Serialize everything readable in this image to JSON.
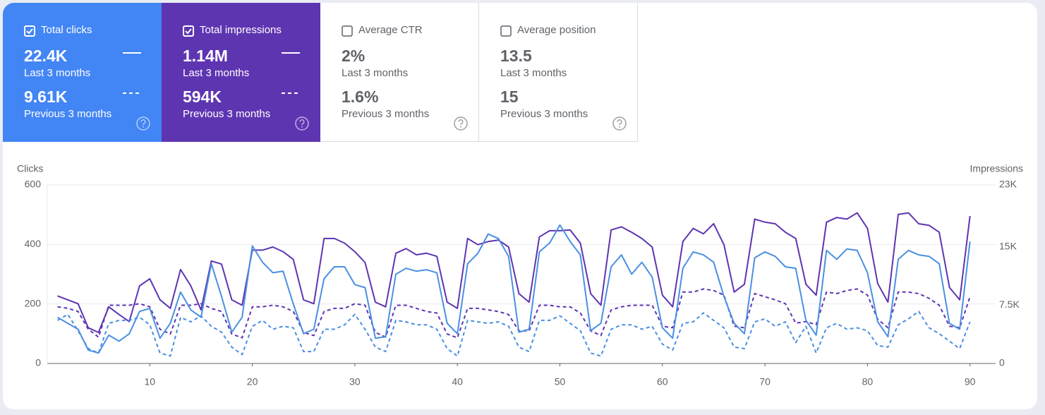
{
  "cards": [
    {
      "label": "Total clicks",
      "checked": true,
      "color": "#4285f4",
      "value": "22.4K",
      "period": "Last 3 months",
      "prev_value": "9.61K",
      "prev_period": "Previous 3 months"
    },
    {
      "label": "Total impressions",
      "checked": true,
      "color": "#5e35b1",
      "value": "1.14M",
      "period": "Last 3 months",
      "prev_value": "594K",
      "prev_period": "Previous 3 months"
    },
    {
      "label": "Average CTR",
      "checked": false,
      "color": "#ffffff",
      "value": "2%",
      "period": "Last 3 months",
      "prev_value": "1.6%",
      "prev_period": "Previous 3 months"
    },
    {
      "label": "Average position",
      "checked": false,
      "color": "#ffffff",
      "value": "13.5",
      "period": "Last 3 months",
      "prev_value": "15",
      "prev_period": "Previous 3 months"
    }
  ],
  "chart_data": {
    "type": "line",
    "y_label": "Clicks",
    "y2_label": "Impressions",
    "grid": true,
    "x": [
      1,
      2,
      3,
      4,
      5,
      6,
      7,
      8,
      9,
      10,
      11,
      12,
      13,
      14,
      15,
      16,
      17,
      18,
      19,
      20,
      21,
      22,
      23,
      24,
      25,
      26,
      27,
      28,
      29,
      30,
      31,
      32,
      33,
      34,
      35,
      36,
      37,
      38,
      39,
      40,
      41,
      42,
      43,
      44,
      45,
      46,
      47,
      48,
      49,
      50,
      51,
      52,
      53,
      54,
      55,
      56,
      57,
      58,
      59,
      60,
      61,
      62,
      63,
      64,
      65,
      66,
      67,
      68,
      69,
      70,
      71,
      72,
      73,
      74,
      75,
      76,
      77,
      78,
      79,
      80,
      81,
      82,
      83,
      84,
      85,
      86,
      87,
      88,
      89,
      90
    ],
    "xlim": [
      0,
      92.5
    ],
    "xticks": [
      10,
      20,
      30,
      40,
      50,
      60,
      70,
      80,
      90
    ],
    "ylim": [
      0,
      600
    ],
    "yticks": [
      0,
      200,
      400,
      600
    ],
    "y2lim": [
      0,
      23000
    ],
    "y2ticks": [
      0,
      {
        "value": 7500,
        "label": "7.5K"
      },
      {
        "value": 15000,
        "label": "15K"
      },
      {
        "value": 23000,
        "label": "23K"
      }
    ],
    "series": [
      {
        "color": "#5e35b1",
        "axis": "y2",
        "dashed": false,
        "values": [
          8700,
          8200,
          7700,
          4600,
          4000,
          7300,
          6300,
          5400,
          10000,
          10900,
          8200,
          7100,
          12100,
          10000,
          6900,
          13200,
          12800,
          8200,
          7500,
          14600,
          14600,
          15000,
          14400,
          13400,
          8200,
          7700,
          16100,
          16100,
          15500,
          14400,
          13000,
          7900,
          7300,
          14200,
          14800,
          14000,
          14200,
          13800,
          7900,
          7100,
          16100,
          15300,
          15700,
          15900,
          15000,
          9000,
          7900,
          16300,
          17100,
          17100,
          17200,
          15500,
          9000,
          7500,
          17200,
          17600,
          16900,
          16100,
          15000,
          8800,
          7300,
          15700,
          17400,
          16700,
          18000,
          15300,
          9200,
          10200,
          18600,
          18200,
          18000,
          16900,
          16100,
          10200,
          8800,
          18200,
          18800,
          18600,
          19400,
          17400,
          10300,
          7900,
          19200,
          19400,
          18000,
          17800,
          16900,
          9800,
          8200,
          19000
        ]
      },
      {
        "color": "#5e35b1",
        "axis": "y2",
        "dashed": true,
        "values": [
          7300,
          7100,
          6700,
          4400,
          3400,
          7500,
          7500,
          7500,
          7700,
          7300,
          4400,
          3800,
          7500,
          7500,
          7700,
          7100,
          6700,
          3800,
          3300,
          7300,
          7300,
          7500,
          7300,
          6700,
          4000,
          3600,
          6700,
          7100,
          7100,
          7700,
          7500,
          4000,
          3400,
          7500,
          7500,
          7100,
          6700,
          6500,
          3800,
          3300,
          7100,
          7100,
          6900,
          6700,
          6300,
          4200,
          4200,
          7500,
          7500,
          7300,
          7300,
          6500,
          4200,
          3600,
          6900,
          7300,
          7500,
          7500,
          7500,
          4800,
          4600,
          9200,
          9200,
          9600,
          9400,
          8800,
          4800,
          4600,
          9000,
          8600,
          8200,
          7700,
          5200,
          5400,
          5000,
          9200,
          9000,
          9400,
          9600,
          8800,
          5700,
          4600,
          9200,
          9200,
          9000,
          8400,
          7500,
          4800,
          4600,
          8600
        ]
      },
      {
        "color": "#4a90e2",
        "axis": "y",
        "dashed": false,
        "values": [
          155,
          135,
          115,
          45,
          35,
          95,
          75,
          100,
          175,
          185,
          85,
          135,
          240,
          180,
          155,
          335,
          225,
          105,
          155,
          395,
          340,
          305,
          310,
          200,
          100,
          115,
          285,
          325,
          325,
          265,
          255,
          85,
          90,
          300,
          320,
          310,
          315,
          305,
          135,
          100,
          335,
          370,
          435,
          420,
          360,
          105,
          115,
          375,
          405,
          465,
          410,
          365,
          110,
          135,
          325,
          365,
          300,
          340,
          290,
          120,
          85,
          320,
          375,
          365,
          340,
          225,
          135,
          100,
          355,
          375,
          360,
          325,
          320,
          145,
          95,
          380,
          350,
          385,
          380,
          305,
          140,
          90,
          350,
          380,
          365,
          360,
          335,
          135,
          115,
          410
        ]
      },
      {
        "color": "#4a90e2",
        "axis": "y",
        "dashed": true,
        "values": [
          145,
          165,
          110,
          50,
          35,
          135,
          145,
          145,
          155,
          130,
          35,
          25,
          155,
          140,
          160,
          125,
          105,
          55,
          30,
          125,
          145,
          115,
          125,
          120,
          40,
          40,
          115,
          115,
          130,
          165,
          115,
          55,
          40,
          145,
          140,
          130,
          130,
          115,
          50,
          25,
          145,
          140,
          135,
          140,
          125,
          55,
          40,
          145,
          145,
          160,
          135,
          110,
          35,
          25,
          115,
          130,
          130,
          115,
          125,
          65,
          45,
          135,
          140,
          170,
          145,
          120,
          55,
          50,
          140,
          150,
          125,
          140,
          70,
          125,
          35,
          120,
          135,
          115,
          120,
          110,
          60,
          55,
          130,
          150,
          175,
          120,
          100,
          75,
          50,
          140
        ]
      }
    ]
  }
}
